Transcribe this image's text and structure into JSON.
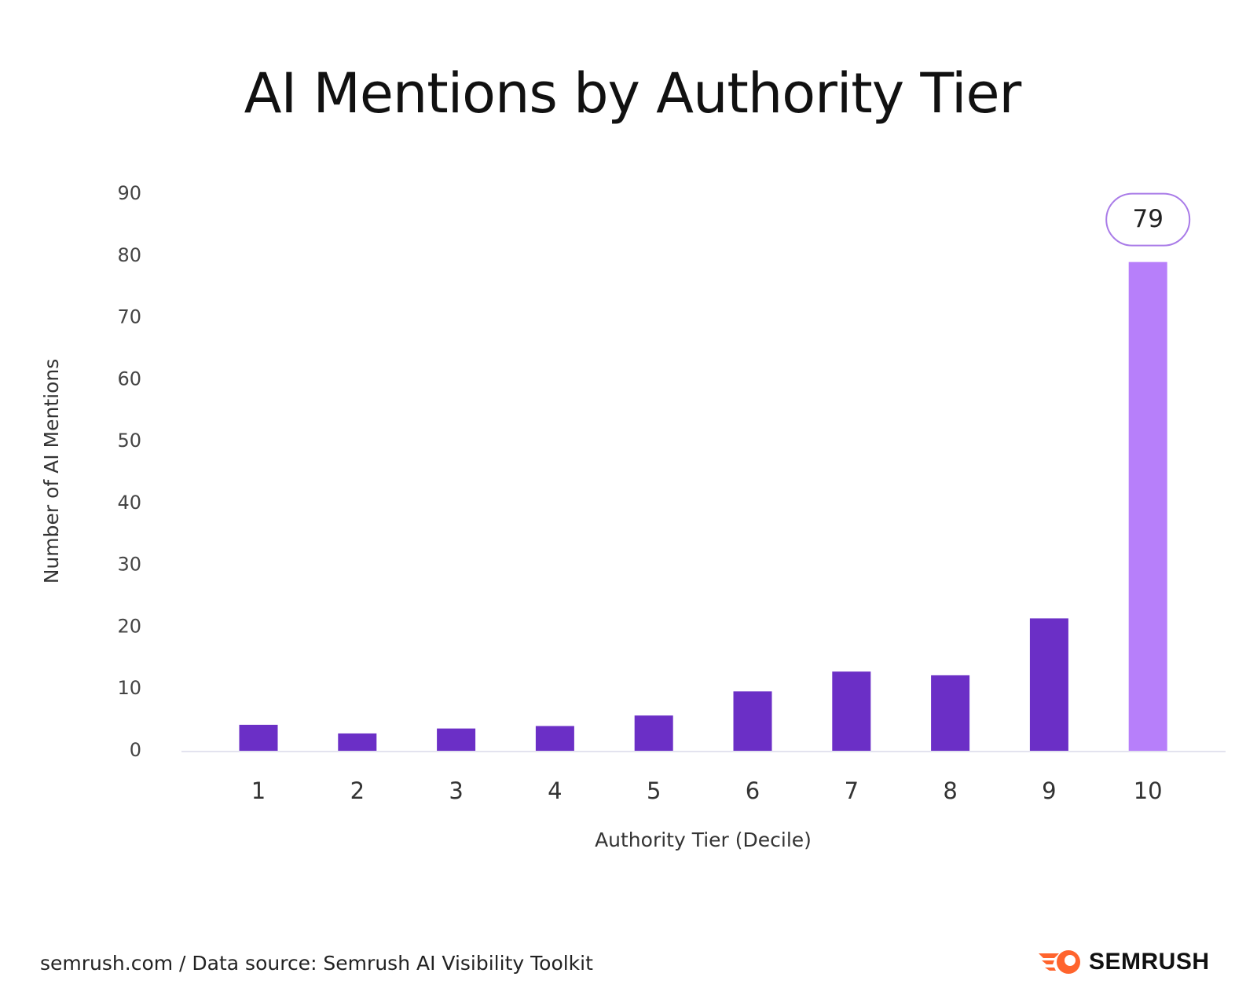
{
  "chart_data": {
    "type": "bar",
    "title": "AI Mentions by Authority Tier",
    "xlabel": "Authority Tier (Decile)",
    "ylabel": "Number of AI Mentions",
    "categories": [
      "1",
      "2",
      "3",
      "4",
      "5",
      "6",
      "7",
      "8",
      "9",
      "10"
    ],
    "values": [
      4.2,
      2.8,
      3.6,
      4.0,
      5.7,
      9.6,
      12.8,
      12.2,
      21.4,
      79
    ],
    "ylim": [
      0,
      90
    ],
    "yticks": [
      0,
      10,
      20,
      30,
      40,
      50,
      60,
      70,
      80,
      90
    ],
    "grid": false,
    "highlight": {
      "category": "10",
      "label": "79",
      "color": "#b77ffa"
    },
    "colors": {
      "bar": "#6b2fc6",
      "highlight": "#b77ffa",
      "axis": "#e3e3ef",
      "label_border": "#a97be8"
    }
  },
  "footer": {
    "source": "semrush.com / Data source: Semrush AI Visibility Toolkit"
  },
  "logo": {
    "text": "SEMRUSH",
    "color": "#ff642d"
  }
}
